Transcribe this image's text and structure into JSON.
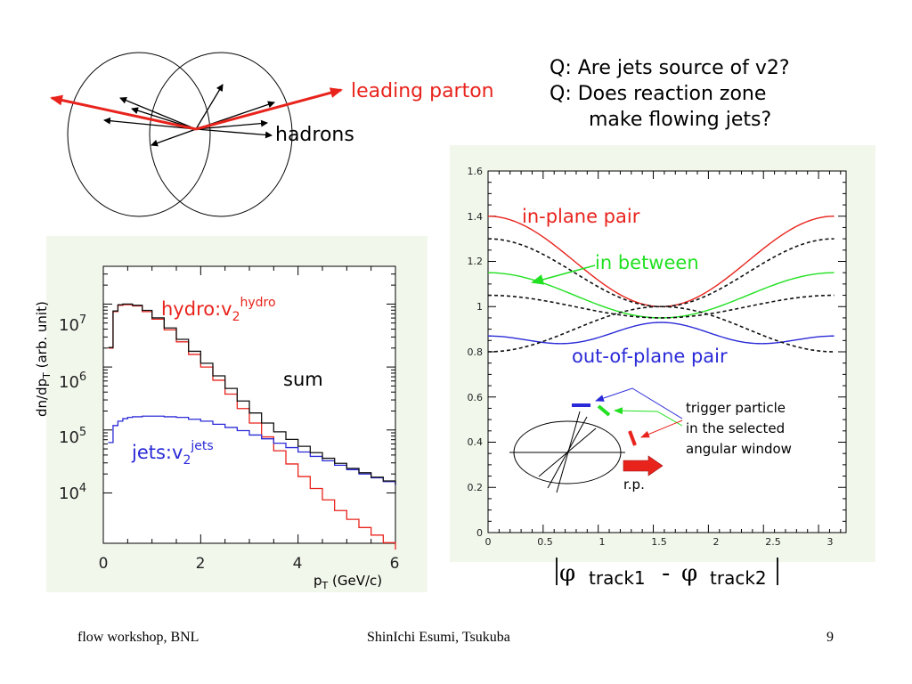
{
  "questions": {
    "q1": "Q: Are jets source of v2?",
    "q2": "Q: Does reaction zone",
    "q2b": "make flowing jets?"
  },
  "diagram": {
    "leading_parton": "leading parton",
    "hadrons": "hadrons"
  },
  "colors": {
    "red": "#e8231c",
    "green": "#22e022",
    "blue": "#2a2ad8",
    "panel": "#f2f7ec"
  },
  "left_plot": {
    "ylabel_main": "dn/dp",
    "ylabel_sub": "T",
    "ylabel_tail": " (arb. unit)",
    "xlabel_main": "p",
    "xlabel_sub": "T",
    "xlabel_tail": " (GeV/c)",
    "hydro_label": "hydro:v",
    "hydro_sub": "2",
    "hydro_sup": "hydro",
    "jets_label": "jets:v",
    "jets_sub": "2",
    "jets_sup": "jets",
    "sum_label": "sum",
    "xticks": [
      "0",
      "2",
      "4",
      "6"
    ],
    "yticks": [
      {
        "base": "10",
        "exp": "7"
      },
      {
        "base": "10",
        "exp": "6"
      },
      {
        "base": "10",
        "exp": "5"
      },
      {
        "base": "10",
        "exp": "4"
      }
    ]
  },
  "right_plot": {
    "in_plane": "in-plane pair",
    "in_between": "in between",
    "out_of_plane": "out-of-plane pair",
    "trigger_1": "trigger particle",
    "trigger_2": "in the selected",
    "trigger_3": "angular window",
    "rp": "r.p.",
    "xlabel_phi1": "φ",
    "xlabel_t1": "track1",
    "xlabel_minus": "-",
    "xlabel_phi2": "φ",
    "xlabel_t2": "track2",
    "xticks": [
      "0",
      "0.5",
      "1",
      "1.5",
      "2",
      "2.5",
      "3"
    ],
    "yticks": [
      "0",
      "0.2",
      "0.4",
      "0.6",
      "0.8",
      "1",
      "1.2",
      "1.4",
      "1.6"
    ]
  },
  "chart_data": [
    {
      "type": "line",
      "title": "",
      "xlabel": "pT (GeV/c)",
      "ylabel": "dn/dpT (arb. unit)",
      "xlim": [
        0,
        6
      ],
      "ylim_log10": [
        3.2,
        7.6
      ],
      "yscale": "log",
      "series": [
        {
          "name": "hydro:v2hydro",
          "color": "#e8231c",
          "x": [
            0.1,
            0.2,
            0.3,
            0.4,
            0.5,
            0.6,
            0.8,
            1.0,
            1.25,
            1.5,
            1.75,
            2.0,
            2.25,
            2.5,
            2.75,
            3.0,
            3.25,
            3.5,
            3.75,
            4.0,
            4.25,
            4.5,
            4.75,
            5.0,
            5.25,
            5.5,
            5.75,
            6.0
          ],
          "y_log10": [
            6.3,
            6.88,
            6.98,
            6.99,
            6.99,
            6.97,
            6.88,
            6.76,
            6.59,
            6.4,
            6.2,
            6.0,
            5.79,
            5.57,
            5.34,
            5.11,
            4.89,
            4.67,
            4.46,
            4.26,
            4.07,
            3.89,
            3.72,
            3.58,
            3.45,
            3.33,
            3.21,
            3.1
          ]
        },
        {
          "name": "jets:v2jets",
          "color": "#2a2ad8",
          "x": [
            0.1,
            0.2,
            0.3,
            0.4,
            0.5,
            0.6,
            0.8,
            1.0,
            1.25,
            1.5,
            1.75,
            2.0,
            2.25,
            2.5,
            2.75,
            3.0,
            3.25,
            3.5,
            3.75,
            4.0,
            4.25,
            4.5,
            4.75,
            5.0,
            5.25,
            5.5,
            5.75,
            6.0
          ],
          "y_log10": [
            4.8,
            5.07,
            5.14,
            5.18,
            5.2,
            5.21,
            5.22,
            5.22,
            5.21,
            5.2,
            5.17,
            5.14,
            5.09,
            5.04,
            4.99,
            4.92,
            4.86,
            4.79,
            4.72,
            4.65,
            4.58,
            4.51,
            4.44,
            4.37,
            4.3,
            4.24,
            4.18,
            4.12
          ]
        },
        {
          "name": "sum",
          "color": "#111111",
          "x": [
            0.1,
            0.2,
            0.3,
            0.4,
            0.5,
            0.6,
            0.8,
            1.0,
            1.25,
            1.5,
            1.75,
            2.0,
            2.25,
            2.5,
            2.75,
            3.0,
            3.25,
            3.5,
            3.75,
            4.0,
            4.25,
            4.5,
            4.75,
            5.0,
            5.25,
            5.5,
            5.75,
            6.0
          ],
          "y_log10": [
            6.31,
            6.89,
            6.99,
            7.0,
            7.0,
            6.98,
            6.9,
            6.78,
            6.62,
            6.44,
            6.25,
            6.06,
            5.86,
            5.66,
            5.46,
            5.27,
            5.11,
            4.97,
            4.85,
            4.74,
            4.64,
            4.55,
            4.47,
            4.39,
            4.32,
            4.25,
            4.19,
            4.13
          ]
        }
      ]
    },
    {
      "type": "line",
      "title": "",
      "xlabel": "|φ track1 - φ track2|",
      "ylabel": "",
      "xlim": [
        0,
        3.14159
      ],
      "ylim": [
        0,
        1.6
      ],
      "series": [
        {
          "name": "in-plane pair",
          "color": "#e8231c",
          "function": "1.2 + 0.2*cos(2x)"
        },
        {
          "name": "in between",
          "color": "#22e022",
          "function": "1.05 + 0.1*cos(2x)"
        },
        {
          "name": "out-of-plane pair",
          "color": "#2a2ad8",
          "function": "0.87 - 0.03*cos(2x) + 0.03*cos(4x)"
        },
        {
          "name": "",
          "color": "#111111",
          "dashed": true,
          "function": "1.15 + 0.15*cos(2x)"
        },
        {
          "name": "",
          "color": "#111111",
          "dashed": true,
          "function": "1.0 + 0.05*cos(2x)"
        },
        {
          "name": "",
          "color": "#111111",
          "dashed": true,
          "function": "0.9 - 0.1*cos(2x)"
        }
      ]
    }
  ],
  "footer": {
    "left": "flow workshop, BNL",
    "center": "ShinIchi Esumi, Tsukuba",
    "page": "9"
  }
}
